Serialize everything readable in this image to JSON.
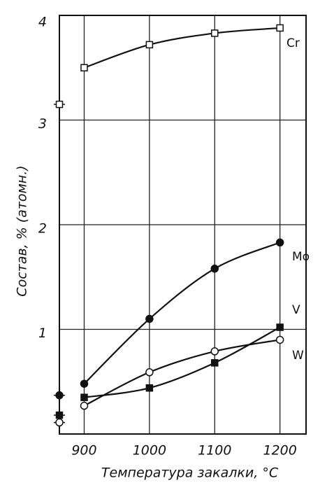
{
  "chart_data": {
    "type": "line",
    "x_label": "Температура закалки, °С",
    "y_label": "Состав, % (атомн.)",
    "x": [
      900,
      1000,
      1100,
      1200
    ],
    "xlim": [
      862,
      1240
    ],
    "ylim": [
      0,
      4
    ],
    "xticks": [
      900,
      1000,
      1100,
      1200
    ],
    "yticks": [
      1,
      2,
      3,
      4
    ],
    "grid": true,
    "series": [
      {
        "name": "Cr",
        "color": "#111111",
        "marker": "open-square",
        "initial_value": 3.15,
        "values": [
          3.5,
          3.72,
          3.83,
          3.88
        ]
      },
      {
        "name": "Mo",
        "color": "#111111",
        "marker": "filled-circle",
        "initial_value": 0.37,
        "values": [
          0.48,
          1.1,
          1.58,
          1.83
        ]
      },
      {
        "name": "V",
        "color": "#111111",
        "marker": "filled-square",
        "initial_value": 0.18,
        "values": [
          0.35,
          0.44,
          0.68,
          1.02
        ]
      },
      {
        "name": "W",
        "color": "#111111",
        "marker": "open-circle",
        "initial_value": 0.11,
        "values": [
          0.27,
          0.59,
          0.79,
          0.9
        ]
      }
    ]
  }
}
